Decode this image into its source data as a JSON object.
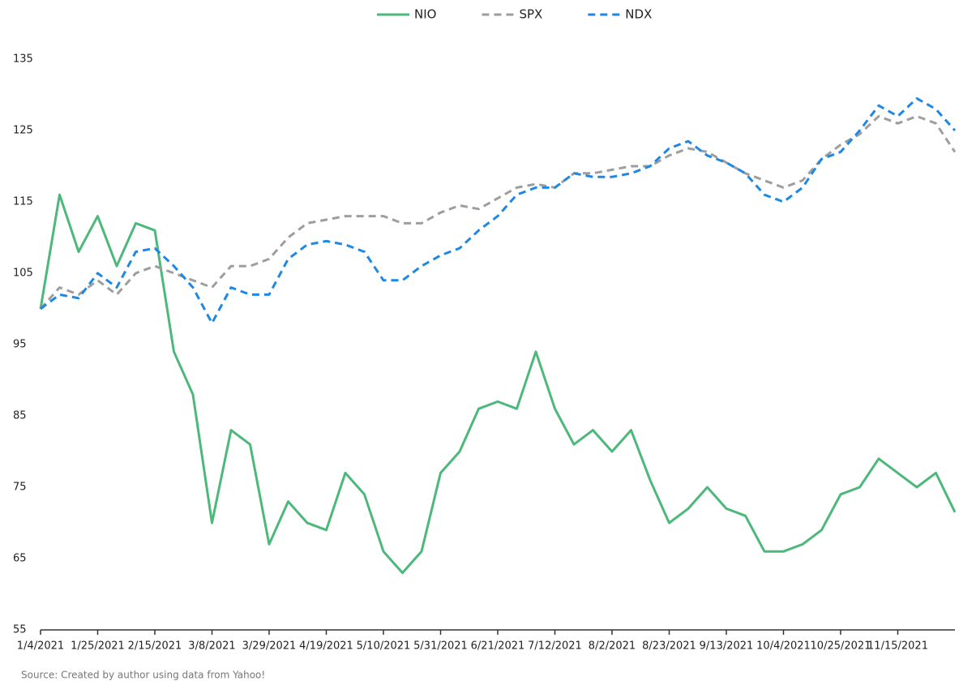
{
  "chart_data": {
    "type": "line",
    "categories": [
      "1/4/2021",
      null,
      null,
      "1/25/2021",
      null,
      null,
      "2/15/2021",
      null,
      null,
      "3/8/2021",
      null,
      null,
      "3/29/2021",
      null,
      null,
      "4/19/2021",
      null,
      null,
      "5/10/2021",
      null,
      null,
      "5/31/2021",
      null,
      null,
      "6/21/2021",
      null,
      null,
      "7/12/2021",
      null,
      null,
      "8/2/2021",
      null,
      null,
      "8/23/2021",
      null,
      null,
      "9/13/2021",
      null,
      null,
      "10/4/2021",
      null,
      null,
      "10/25/2021",
      null,
      null,
      "11/15/2021",
      null,
      null,
      null
    ],
    "series": [
      {
        "name": "NIO",
        "color": "#4cb87a",
        "line_style": "solid",
        "values": [
          100,
          116,
          108,
          113,
          106,
          112,
          111,
          94,
          88,
          70,
          83,
          81,
          67,
          73,
          70,
          69,
          77,
          74,
          66,
          63,
          66,
          77,
          80,
          86,
          87,
          86,
          94,
          86,
          81,
          83,
          80,
          83,
          76,
          70,
          72,
          75,
          72,
          71,
          66,
          66,
          67,
          69,
          74,
          75,
          79,
          77,
          75,
          77,
          71.5
        ]
      },
      {
        "name": "SPX",
        "color": "#9e9e9e",
        "line_style": "dashed",
        "values": [
          100,
          103,
          102,
          104,
          102,
          105,
          106,
          105,
          104,
          103,
          106,
          106,
          107,
          110,
          112,
          112.5,
          113,
          113,
          113,
          112,
          112,
          113.5,
          114.5,
          114,
          115.5,
          117,
          117.5,
          117,
          119,
          119,
          119.5,
          120,
          120,
          121.5,
          122.5,
          122,
          120.5,
          119,
          118,
          117,
          118,
          121,
          123,
          124.5,
          127,
          126,
          127,
          126,
          122
        ]
      },
      {
        "name": "NDX",
        "color": "#1e88e5",
        "line_style": "dashed",
        "values": [
          100,
          102,
          101.5,
          105,
          103,
          108,
          108.5,
          106,
          103,
          98,
          103,
          102,
          102,
          107,
          109,
          109.5,
          109,
          108,
          104,
          104,
          106,
          107.5,
          108.5,
          111,
          113,
          116,
          117,
          117,
          119,
          118.5,
          118.5,
          119,
          120,
          122.5,
          123.5,
          121.5,
          120.5,
          119,
          116,
          115,
          117,
          121,
          122,
          125,
          128.5,
          127,
          129.5,
          128,
          125
        ]
      }
    ],
    "ylim": [
      55,
      135
    ],
    "yticks": [
      55,
      65,
      75,
      85,
      95,
      105,
      115,
      125,
      135
    ],
    "grid": false,
    "legend": "top",
    "source": "Source: Created by author using data from Yahoo!"
  }
}
